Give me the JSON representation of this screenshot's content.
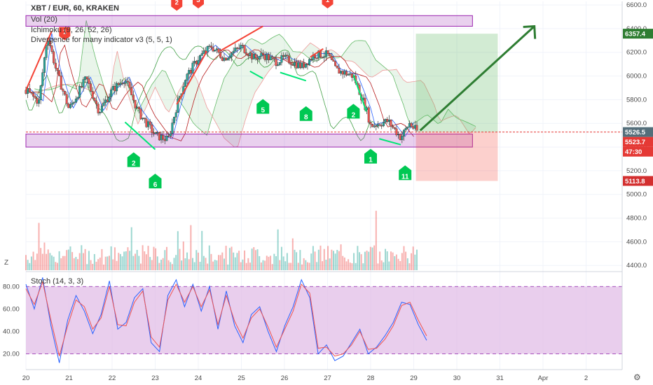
{
  "header": {
    "symbol": "XBT / EUR, 60, KRAKEN",
    "volume": "Vol (20)",
    "ichimoku": "Ichimoku (9, 26, 52, 26)",
    "divergence": "Divergence for many indicator v3 (5, 5, 1)"
  },
  "stoch_label": "Stoch (14, 3, 3)",
  "corner_icon": "Z",
  "gear_icon": "gear-icon",
  "colors": {
    "up": "#26a69a",
    "down": "#ef5350",
    "bear_signal": "#f44336",
    "bull_signal": "#00c853",
    "zone": "#9c27b0",
    "stoch_band": "#e1bee7",
    "target": "#2e7d32"
  },
  "chart_data": [
    {
      "type": "candlestick",
      "title": "XBT / EUR, 60, KRAKEN",
      "x_ticks": [
        "20",
        "21",
        "22",
        "23",
        "24",
        "25",
        "26",
        "27",
        "28",
        "29",
        "30",
        "31",
        "Apr",
        "2"
      ],
      "y_ticks": [
        "6600.0",
        "6400.0",
        "6200.0",
        "6000.0",
        "5800.0",
        "5600.0",
        "5400.0",
        "5200.0",
        "5000.0",
        "4800.0",
        "4600.0",
        "4400.0"
      ],
      "ylim": [
        4360,
        6630
      ],
      "price_path": [
        [
          "20",
          5880
        ],
        [
          "20.3",
          5780
        ],
        [
          "20.5",
          6350
        ],
        [
          "20.7",
          6050
        ],
        [
          "21",
          5720
        ],
        [
          "21.4",
          5980
        ],
        [
          "21.7",
          5700
        ],
        [
          "22",
          5880
        ],
        [
          "22.3",
          5980
        ],
        [
          "22.6",
          5700
        ],
        [
          "23",
          5500
        ],
        [
          "23.3",
          5460
        ],
        [
          "23.5",
          5750
        ],
        [
          "23.7",
          5980
        ],
        [
          "24",
          6150
        ],
        [
          "24.3",
          6250
        ],
        [
          "24.6",
          6150
        ],
        [
          "25",
          6250
        ],
        [
          "25.3",
          6150
        ],
        [
          "25.5",
          6180
        ],
        [
          "25.8",
          6120
        ],
        [
          "26",
          6150
        ],
        [
          "26.4",
          6080
        ],
        [
          "26.7",
          6180
        ],
        [
          "27",
          6180
        ],
        [
          "27.2",
          6050
        ],
        [
          "27.6",
          6000
        ],
        [
          "27.9",
          5720
        ],
        [
          "28",
          5580
        ],
        [
          "28.4",
          5620
        ],
        [
          "28.7",
          5480
        ],
        [
          "28.9",
          5600
        ],
        [
          "29",
          5560
        ],
        [
          "29.1",
          5526.5
        ]
      ],
      "price_labels": {
        "last": "5526.5",
        "target": "6357.4",
        "stop": "5113.8",
        "current": "5523.7",
        "countdown": "47:30"
      },
      "zones": [
        {
          "name": "resistance",
          "low": 6420,
          "high": 6510
        },
        {
          "name": "support",
          "low": 5400,
          "high": 5510
        }
      ],
      "position": {
        "entry": 5526.5,
        "target": 6357.4,
        "stop": 5113.8
      },
      "bear_signals": [
        {
          "label": "1",
          "x": "20.9"
        },
        {
          "label": "2",
          "x": "23.5"
        },
        {
          "label": "3",
          "x": "24"
        },
        {
          "label": "1",
          "x": "27"
        }
      ],
      "bull_signals": [
        {
          "label": "2",
          "x": "22.5"
        },
        {
          "label": "6",
          "x": "23"
        },
        {
          "label": "5",
          "x": "25.5"
        },
        {
          "label": "8",
          "x": "26.5"
        },
        {
          "label": "2",
          "x": "27.6"
        },
        {
          "label": "1",
          "x": "28"
        },
        {
          "label": "11",
          "x": "28.8"
        }
      ]
    },
    {
      "type": "line",
      "title": "Stoch (14, 3, 3)",
      "y_ticks": [
        "80.00",
        "60.00",
        "40.00",
        "20.00"
      ],
      "ylim": [
        6,
        92
      ],
      "band": [
        20,
        80
      ],
      "series": [
        {
          "values": [
            82,
            60,
            88,
            45,
            12,
            50,
            72,
            58,
            38,
            55,
            85,
            42,
            48,
            70,
            78,
            30,
            22,
            72,
            86,
            62,
            82,
            58,
            80,
            42,
            76,
            45,
            30,
            55,
            62,
            40,
            22,
            45,
            62,
            86,
            70,
            20,
            28,
            14,
            18,
            30,
            42,
            20,
            26,
            36,
            48,
            66,
            64,
            46,
            32
          ]
        },
        {
          "values": [
            78,
            64,
            84,
            50,
            18,
            45,
            68,
            62,
            42,
            52,
            80,
            46,
            45,
            66,
            76,
            35,
            26,
            68,
            82,
            66,
            80,
            62,
            77,
            46,
            72,
            49,
            34,
            52,
            60,
            44,
            26,
            42,
            58,
            82,
            74,
            25,
            26,
            18,
            20,
            28,
            40,
            24,
            25,
            33,
            45,
            63,
            66,
            50,
            36
          ]
        }
      ]
    }
  ]
}
